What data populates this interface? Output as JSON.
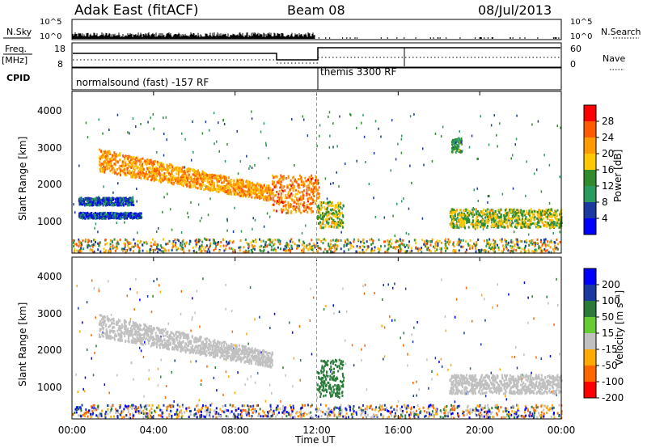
{
  "header": {
    "radar": "Adak East (fitACF)",
    "beam": "Beam 08",
    "date": "08/Jul/2013"
  },
  "panels_top": {
    "nsky_label": "N.Sky",
    "nsky_ticks": [
      "10^5",
      "10^0"
    ],
    "nsearch_label": "N.Search",
    "nsearch_ticks": [
      "10^5",
      "10^0"
    ],
    "freq_label_1": "Freq.",
    "freq_label_2": "[MHz]",
    "freq_ticks": [
      "18",
      "8"
    ],
    "nave_label": "Nave",
    "nave_ticks": [
      "60",
      "0"
    ],
    "cpid_label": "CPID",
    "cpid_segments": [
      "normalsound (fast) -157 RF",
      "themis 3300 RF"
    ]
  },
  "time_axis": {
    "label": "Time UT",
    "ticks": [
      "00:00",
      "04:00",
      "08:00",
      "12:00",
      "16:00",
      "20:00",
      "00:00"
    ]
  },
  "power_colorbar": {
    "label": "Power [dB]",
    "ticks": [
      "28",
      "24",
      "20",
      "16",
      "12",
      "8",
      "4"
    ],
    "colors": [
      "#ff0000",
      "#ff5a00",
      "#ff9a00",
      "#ffc800",
      "#2e8b2e",
      "#2a9a5e",
      "#1a3aa0",
      "#0000ff"
    ]
  },
  "velocity_colorbar": {
    "label": "Velocity [m s⁻¹]",
    "ticks": [
      "200",
      "100",
      "50",
      "15",
      "-15",
      "-50",
      "-100",
      "-200"
    ],
    "colors": [
      "#0000ff",
      "#1a3aa0",
      "#2a7a3a",
      "#66cc33",
      "#c0c0c0",
      "#ffaa00",
      "#ff6600",
      "#ff0000"
    ]
  },
  "chart_data": [
    {
      "type": "heatmap",
      "title": "Power",
      "xlabel": "Time UT",
      "ylabel": "Slant Range [km]",
      "yticks": [
        "1000",
        "2000",
        "3000",
        "4000"
      ],
      "ylim": [
        200,
        4500
      ],
      "xlim_hours": [
        0,
        24
      ],
      "colorbar": "Power [dB]",
      "features": [
        {
          "name": "band",
          "t": [
            0.3,
            3.4
          ],
          "range": [
            1150,
            1300
          ],
          "power_db": 6
        },
        {
          "name": "band",
          "t": [
            0.3,
            3.0
          ],
          "range": [
            1500,
            1700
          ],
          "power_db": 6
        },
        {
          "name": "arc",
          "t": [
            1.3,
            9.8
          ],
          "range_start": [
            3000,
            2400
          ],
          "range_end": [
            2000,
            1600
          ],
          "power_db": 22
        },
        {
          "name": "patch",
          "t": [
            9.8,
            12.1
          ],
          "range": [
            1300,
            2300
          ],
          "power_db": 24
        },
        {
          "name": "patch",
          "t": [
            12.0,
            13.3
          ],
          "range": [
            900,
            1600
          ],
          "power_db": 16
        },
        {
          "name": "patch",
          "t": [
            18.6,
            19.1
          ],
          "range": [
            2900,
            3300
          ],
          "power_db": 12
        },
        {
          "name": "band",
          "t": [
            18.5,
            24.0
          ],
          "range": [
            900,
            1400
          ],
          "power_db": 16
        }
      ]
    },
    {
      "type": "heatmap",
      "title": "Velocity",
      "xlabel": "Time UT",
      "ylabel": "Slant Range [km]",
      "yticks": [
        "1000",
        "2000",
        "3000",
        "4000"
      ],
      "ylim": [
        200,
        4500
      ],
      "xlim_hours": [
        0,
        24
      ],
      "colorbar": "Velocity [m s⁻¹]",
      "features": [
        {
          "name": "arc",
          "t": [
            1.3,
            9.8
          ],
          "range_start": [
            3000,
            2400
          ],
          "range_end": [
            2000,
            1600
          ],
          "velocity": 0
        },
        {
          "name": "patch",
          "t": [
            12.0,
            13.3
          ],
          "range": [
            800,
            1800
          ],
          "velocity": 30
        },
        {
          "name": "band",
          "t": [
            18.5,
            24.0
          ],
          "range": [
            900,
            1400
          ],
          "velocity": 0
        }
      ]
    }
  ]
}
